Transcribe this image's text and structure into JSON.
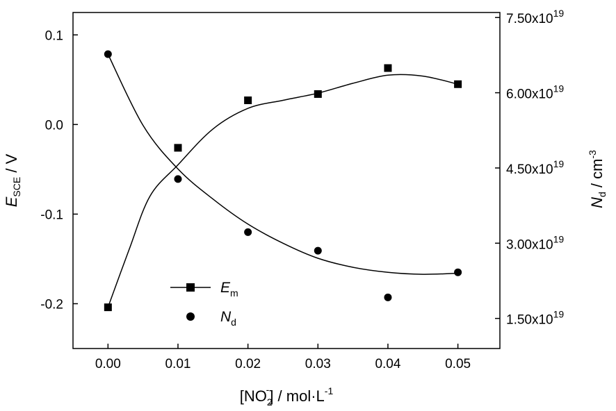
{
  "chart_data": {
    "type": "scatter",
    "title": "",
    "x": [
      0.0,
      0.01,
      0.02,
      0.03,
      0.04,
      0.05
    ],
    "xticks": [
      "0.00",
      "0.01",
      "0.02",
      "0.03",
      "0.04",
      "0.05"
    ],
    "xlim": [
      -0.005,
      0.056
    ],
    "xlabel": {
      "pre": "[NO",
      "sub": "2",
      "sup": "-",
      "post": "] / mol·L",
      "post_sup": "-1"
    },
    "y_left": {
      "label": {
        "main": "E",
        "sub": "SCE",
        "post": " / V"
      },
      "lim": [
        -0.25,
        0.125
      ],
      "ticks": [
        0.1,
        0.0,
        -0.1,
        -0.2
      ],
      "tick_labels": [
        "0.1",
        "0.0",
        "-0.1",
        "-0.2"
      ]
    },
    "y_right": {
      "label": {
        "main": "N",
        "sub": "d",
        "post": " / cm",
        "sup": "-3"
      },
      "lim": [
        9e+18,
        7.6e+19
      ],
      "ticks": [
        1.5e+19,
        3e+19,
        4.5e+19,
        6e+19,
        7.5e+19
      ],
      "tick_labels": [
        "1.50x10",
        "3.00x10",
        "4.50x10",
        "6.00x10",
        "7.50x10"
      ],
      "tick_exp": "19"
    },
    "series": [
      {
        "name": "E",
        "name_sub": "m",
        "axis": "left",
        "marker": "square",
        "values": [
          -0.204,
          -0.026,
          0.027,
          0.034,
          0.063,
          0.045
        ],
        "fit": [
          [
            0.0,
            -0.204
          ],
          [
            0.003,
            -0.14
          ],
          [
            0.006,
            -0.08
          ],
          [
            0.01,
            -0.045
          ],
          [
            0.015,
            -0.005
          ],
          [
            0.02,
            0.018
          ],
          [
            0.025,
            0.027
          ],
          [
            0.03,
            0.035
          ],
          [
            0.035,
            0.046
          ],
          [
            0.04,
            0.055
          ],
          [
            0.045,
            0.054
          ],
          [
            0.05,
            0.045
          ]
        ]
      },
      {
        "name": "N",
        "name_sub": "d",
        "axis": "right",
        "marker": "circle",
        "values": [
          6.77e+19,
          4.28e+19,
          3.22e+19,
          2.85e+19,
          1.92e+19,
          2.42e+19
        ],
        "fit": [
          [
            0.0,
            6.77e+19
          ],
          [
            0.005,
            5.35e+19
          ],
          [
            0.01,
            4.48e+19
          ],
          [
            0.015,
            3.88e+19
          ],
          [
            0.02,
            3.38e+19
          ],
          [
            0.025,
            3e+19
          ],
          [
            0.03,
            2.7e+19
          ],
          [
            0.035,
            2.52e+19
          ],
          [
            0.04,
            2.42e+19
          ],
          [
            0.045,
            2.38e+19
          ],
          [
            0.05,
            2.4e+19
          ]
        ]
      }
    ],
    "legend": "bottom-left",
    "grid": false
  }
}
